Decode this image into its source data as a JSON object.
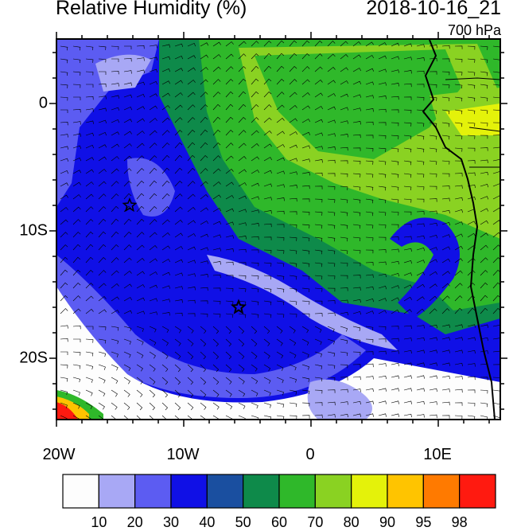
{
  "header": {
    "title": "Relative Humidity (%)",
    "datetime": "2018-10-16_21",
    "level": "700 hPa"
  },
  "axes": {
    "lon_labels": [
      "20W",
      "10W",
      "0",
      "10E"
    ],
    "lat_labels": [
      "0",
      "10S",
      "20S"
    ]
  },
  "colorbar": {
    "labels": [
      "10",
      "20",
      "30",
      "40",
      "50",
      "60",
      "70",
      "80",
      "90",
      "95",
      "98"
    ],
    "colors": [
      "#fdfdfd",
      "#a8a8f5",
      "#5c5cf2",
      "#1010e6",
      "#1a4fa0",
      "#0e8a4a",
      "#2fb82a",
      "#8ad222",
      "#e4f20a",
      "#ffc400",
      "#ff7a00",
      "#ff1a10"
    ]
  },
  "markers": [
    {
      "name": "star-marker-1",
      "symbol": "star"
    },
    {
      "name": "star-marker-2",
      "symbol": "star"
    }
  ]
}
